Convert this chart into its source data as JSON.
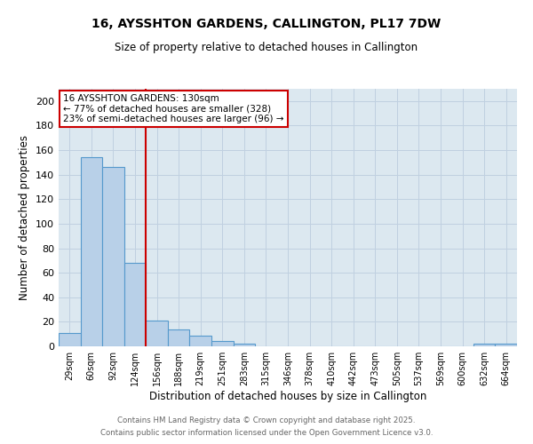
{
  "title_line1": "16, AYSSHTON GARDENS, CALLINGTON, PL17 7DW",
  "title_line2": "Size of property relative to detached houses in Callington",
  "xlabel": "Distribution of detached houses by size in Callington",
  "ylabel": "Number of detached properties",
  "categories": [
    "29sqm",
    "60sqm",
    "92sqm",
    "124sqm",
    "156sqm",
    "188sqm",
    "219sqm",
    "251sqm",
    "283sqm",
    "315sqm",
    "346sqm",
    "378sqm",
    "410sqm",
    "442sqm",
    "473sqm",
    "505sqm",
    "537sqm",
    "569sqm",
    "600sqm",
    "632sqm",
    "664sqm"
  ],
  "values": [
    11,
    154,
    146,
    68,
    21,
    14,
    9,
    4,
    2,
    0,
    0,
    0,
    0,
    0,
    0,
    0,
    0,
    0,
    0,
    2,
    2
  ],
  "bar_color": "#b8d0e8",
  "bar_edge_color": "#5599cc",
  "vline_color": "#cc0000",
  "vline_x": 3.5,
  "annotation_text_line1": "16 AYSSHTON GARDENS: 130sqm",
  "annotation_text_line2": "← 77% of detached houses are smaller (328)",
  "annotation_text_line3": "23% of semi-detached houses are larger (96) →",
  "annotation_box_facecolor": "#ffffff",
  "annotation_box_edgecolor": "#cc0000",
  "ylim": [
    0,
    210
  ],
  "yticks": [
    0,
    20,
    40,
    60,
    80,
    100,
    120,
    140,
    160,
    180,
    200
  ],
  "grid_color": "#c0d0e0",
  "background_color": "#dce8f0",
  "footer_line1": "Contains HM Land Registry data © Crown copyright and database right 2025.",
  "footer_line2": "Contains public sector information licensed under the Open Government Licence v3.0."
}
